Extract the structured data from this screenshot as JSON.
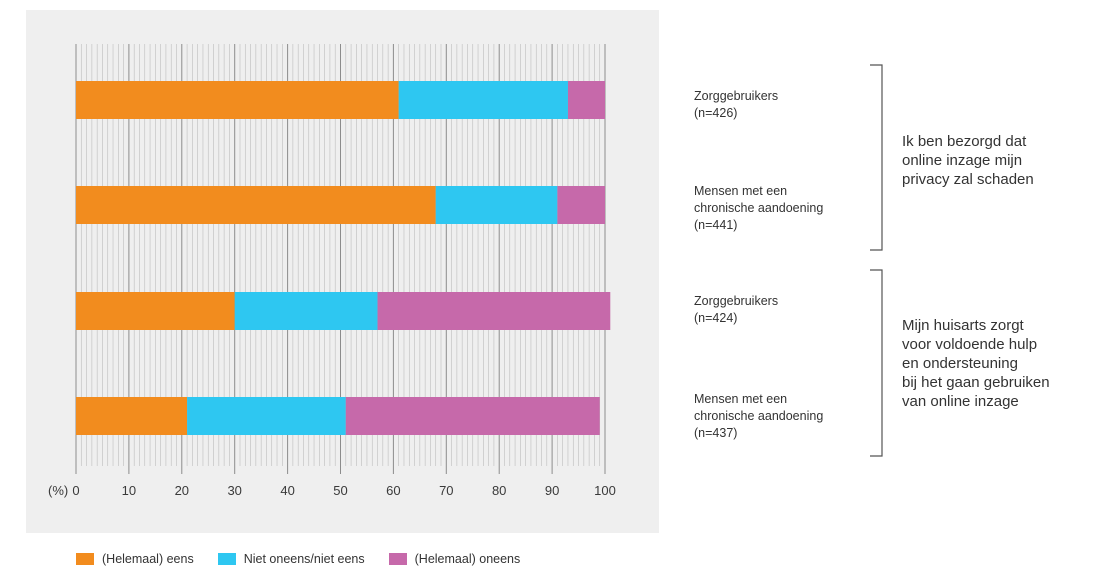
{
  "chart_data": {
    "type": "bar",
    "orientation": "horizontal",
    "stacked": true,
    "axis_unit_label": "(%)",
    "xlim": [
      0,
      100
    ],
    "x_ticks": [
      0,
      10,
      20,
      30,
      40,
      50,
      60,
      70,
      80,
      90,
      100
    ],
    "grid": true,
    "legend_position": "bottom",
    "categories": [
      "Zorggebruikers (n=426)",
      "Mensen met een chronische aandoening (n=441)",
      "Zorggebruikers (n=424)",
      "Mensen met een chronische aandoening (n=437)"
    ],
    "series": [
      {
        "name": "(Helemaal) eens",
        "color": "#f28c1e",
        "values": [
          61,
          68,
          30,
          21
        ]
      },
      {
        "name": "Niet oneens/niet eens",
        "color": "#2ec7f1",
        "values": [
          32,
          23,
          27,
          30
        ]
      },
      {
        "name": "(Helemaal) oneens",
        "color": "#c669aa",
        "values": [
          7,
          9,
          44,
          48
        ]
      }
    ]
  },
  "group_labels": [
    {
      "line1": "Zorggebruikers",
      "line2": "(n=426)"
    },
    {
      "line1": "Mensen met een",
      "line2": "chronische aandoening",
      "line3": "(n=441)"
    },
    {
      "line1": "Zorggebruikers",
      "line2": "(n=424)"
    },
    {
      "line1": "Mensen met een",
      "line2": "chronische aandoening",
      "line3": "(n=437)"
    }
  ],
  "questions": [
    {
      "line1": "Ik ben bezorgd dat",
      "line2": "online inzage mijn",
      "line3": "privacy zal schaden"
    },
    {
      "line1": "Mijn huisarts zorgt",
      "line2": "voor voldoende hulp",
      "line3": "en ondersteuning",
      "line4": "bij het gaan gebruiken",
      "line5": "van online inzage"
    }
  ],
  "legend": [
    {
      "label": "(Helemaal) eens",
      "color": "#f28c1e"
    },
    {
      "label": "Niet oneens/niet eens",
      "color": "#2ec7f1"
    },
    {
      "label": "(Helemaal) oneens",
      "color": "#c669aa"
    }
  ]
}
